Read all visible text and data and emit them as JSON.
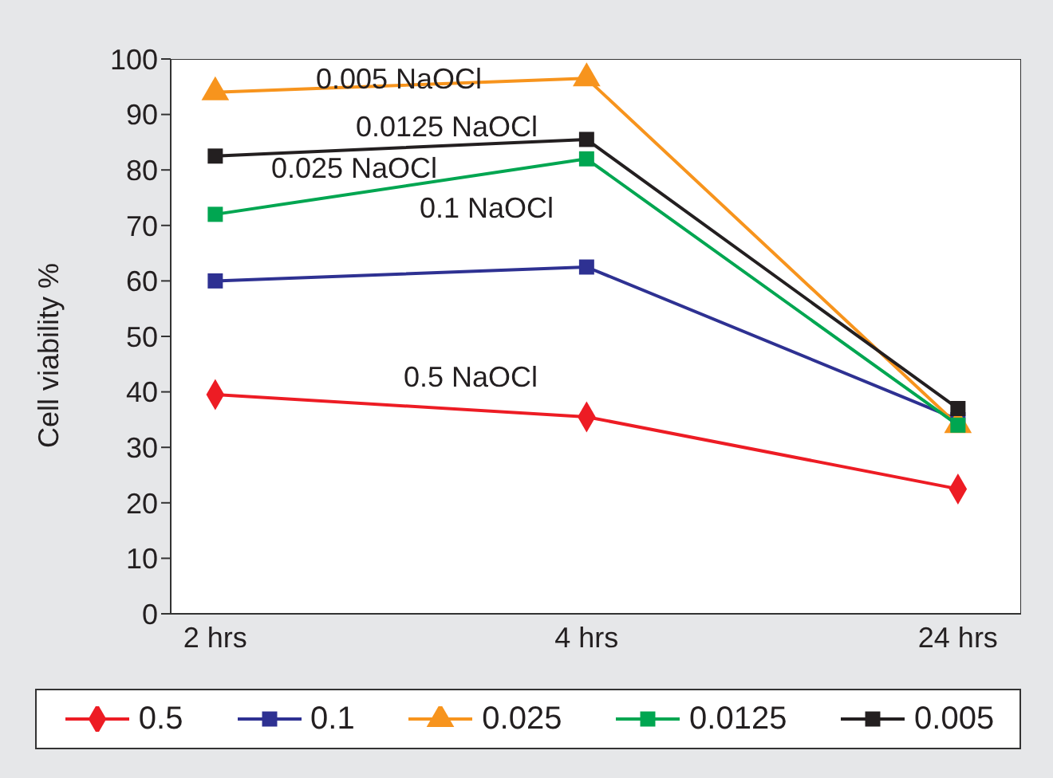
{
  "chart_data": {
    "type": "line",
    "ylabel": "Cell viability %",
    "categories": [
      "2 hrs",
      "4 hrs",
      "24 hrs"
    ],
    "ylim": [
      0,
      100
    ],
    "yticks": [
      0,
      10,
      20,
      30,
      40,
      50,
      60,
      70,
      80,
      90,
      100
    ],
    "series": [
      {
        "name": "0.5",
        "color": "#ed1c24",
        "marker": "diamond",
        "values": [
          39.5,
          35.5,
          22.5
        ]
      },
      {
        "name": "0.1",
        "color": "#2e3192",
        "marker": "square",
        "values": [
          60,
          62.5,
          35
        ]
      },
      {
        "name": "0.025",
        "color": "#f7941d",
        "marker": "triangle",
        "values": [
          94,
          96.5,
          34
        ]
      },
      {
        "name": "0.0125",
        "color": "#00a651",
        "marker": "square",
        "values": [
          72,
          82,
          34
        ]
      },
      {
        "name": "0.005",
        "color": "#231f20",
        "marker": "square",
        "values": [
          82.5,
          85.5,
          37
        ]
      }
    ],
    "annotations": [
      "0.005 NaOCl",
      "0.0125 NaOCl",
      "0.025 NaOCl",
      "0.1 NaOCl",
      "0.5 NaOCl"
    ],
    "legend": "bottom",
    "line_style": "solid"
  }
}
